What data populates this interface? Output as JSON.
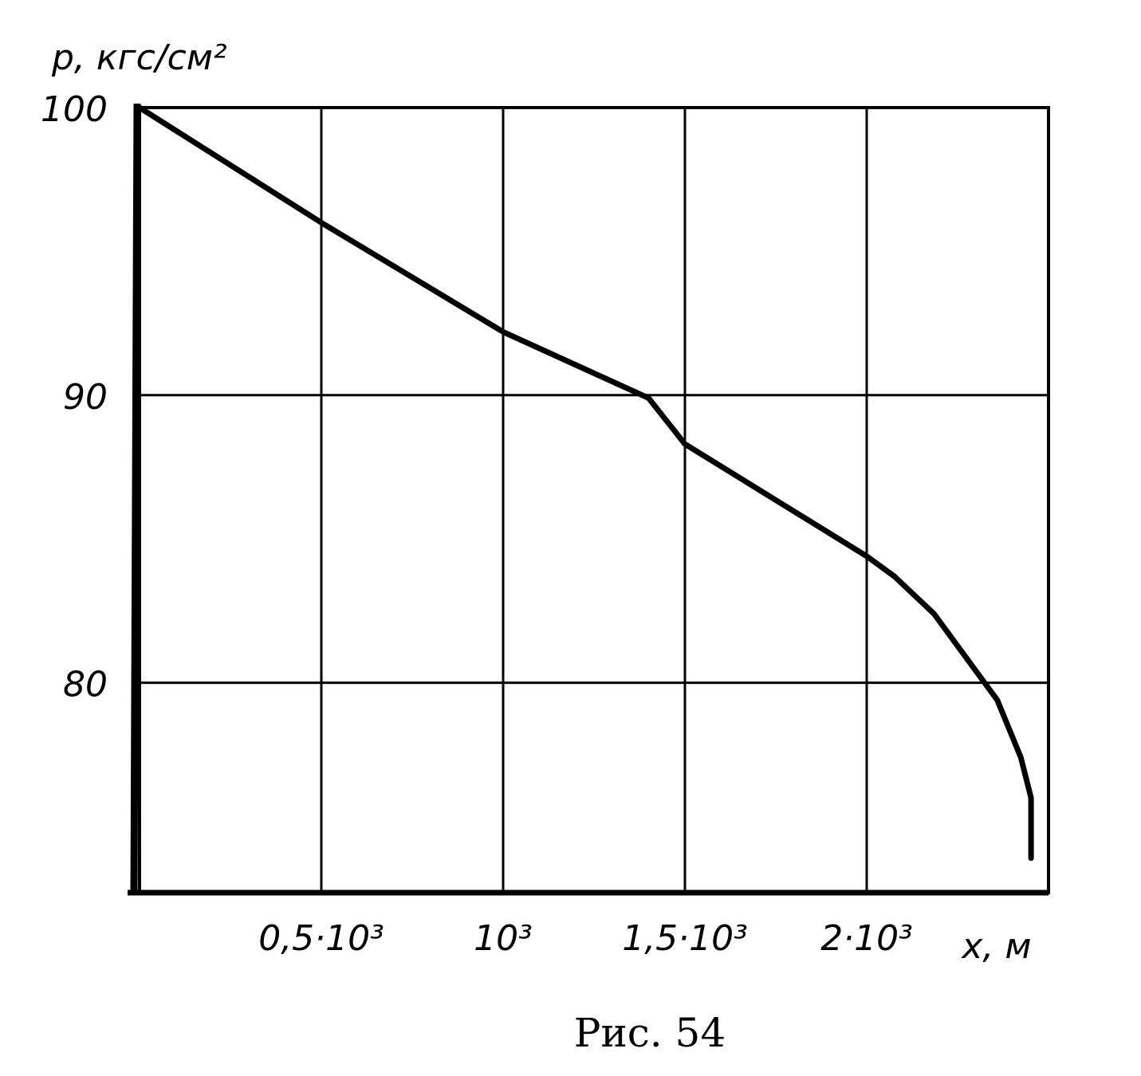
{
  "chart_data": {
    "type": "line",
    "y_label": "p, кгс/см²",
    "x_label": "x, м",
    "caption": "Рис. 54",
    "x": [
      0,
      500,
      1000,
      1400,
      1500,
      2000,
      2076,
      2185,
      2359,
      2424,
      2452,
      2452
    ],
    "series": [
      {
        "color": "#000000",
        "values": [
          100,
          96.0,
          92.2,
          89.9,
          88.3,
          84.4,
          83.7,
          82.4,
          79.4,
          77.4,
          76.0,
          73.9
        ]
      }
    ],
    "xlim": [
      0,
      2500
    ],
    "ylim": [
      72.7,
      100
    ],
    "xticks": [
      {
        "value": 500,
        "label": "0,5·10³"
      },
      {
        "value": 1000,
        "label": "10³"
      },
      {
        "value": 1500,
        "label": "1,5·10³"
      },
      {
        "value": 2000,
        "label": "2·10³"
      }
    ],
    "yticks": [
      80,
      90,
      100
    ],
    "grid": true
  }
}
